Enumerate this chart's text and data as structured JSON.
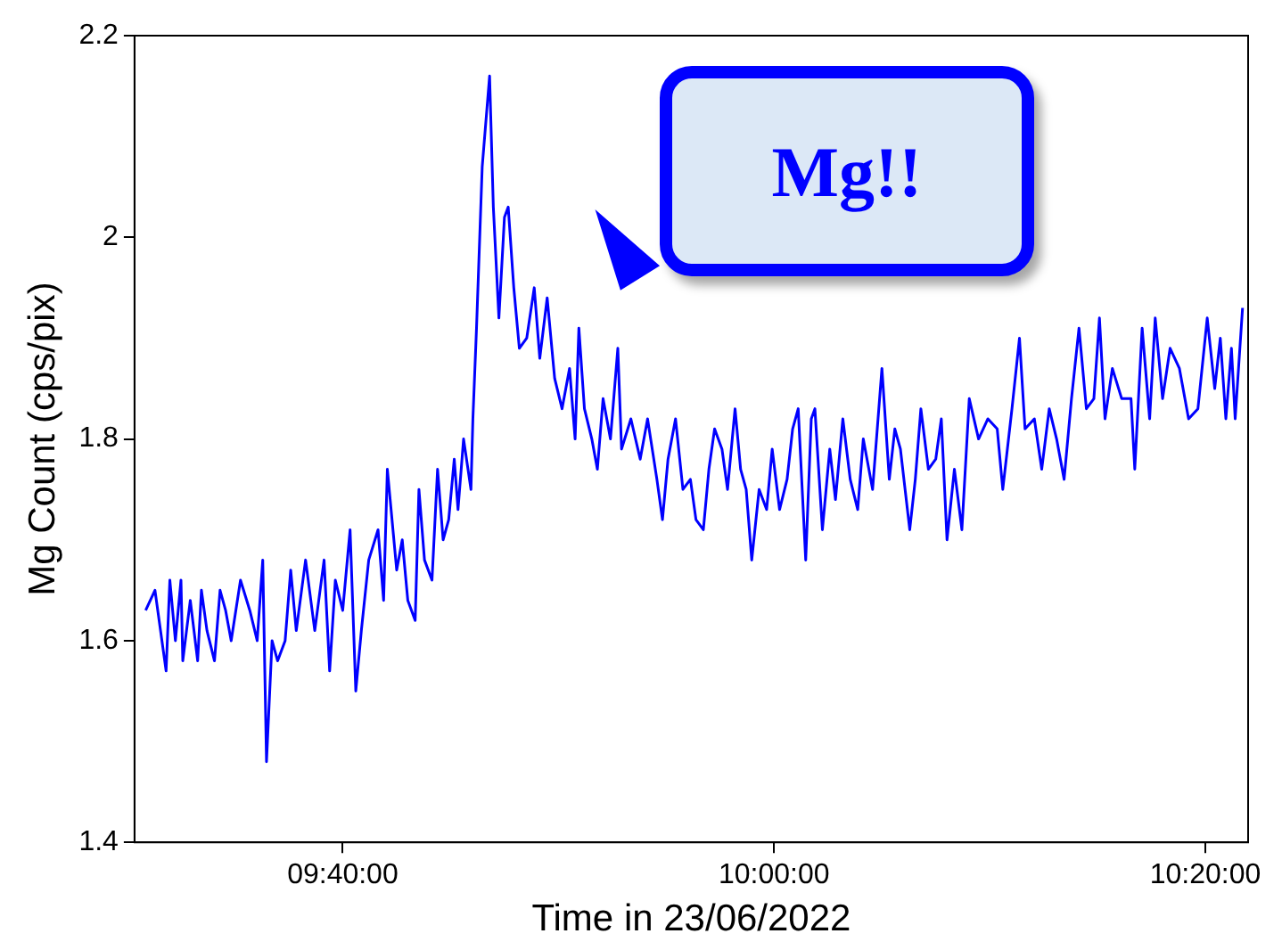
{
  "chart_data": {
    "type": "line",
    "xlabel": "Time in 23/06/2022",
    "ylabel": "Mg Count (cps/pix)",
    "annotations": [
      "Mg!!"
    ],
    "xlim": [
      9.5058,
      10.3664
    ],
    "xticks": [
      {
        "value": 9.6667,
        "label": "09:40:00"
      },
      {
        "value": 10,
        "label": "10:00:00"
      },
      {
        "value": 10.3333,
        "label": "10:20:00"
      }
    ],
    "ylim": [
      1.4,
      2.2
    ],
    "yticks": [
      1.4,
      1.6,
      1.8,
      2,
      2.2
    ],
    "grid": false,
    "legend": false,
    "marker": "none",
    "line_style": "solid",
    "series": [
      {
        "color": "#0000ff",
        "x": [
          9.5144,
          9.5216,
          9.5302,
          9.5331,
          9.5374,
          9.5417,
          9.5431,
          9.5489,
          9.5546,
          9.5575,
          9.5618,
          9.5676,
          9.5719,
          9.5762,
          9.5805,
          9.5877,
          9.5949,
          9.6006,
          9.6049,
          9.6078,
          9.6121,
          9.6164,
          9.6222,
          9.6265,
          9.6308,
          9.638,
          9.6451,
          9.6523,
          9.6566,
          9.661,
          9.6667,
          9.6724,
          9.6768,
          9.6811,
          9.6868,
          9.694,
          9.6983,
          9.7012,
          9.7084,
          9.7127,
          9.717,
          9.7227,
          9.7256,
          9.7299,
          9.7357,
          9.74,
          9.7443,
          9.7486,
          9.7529,
          9.7558,
          9.7601,
          9.7658,
          9.7673,
          9.7701,
          9.7745,
          9.7802,
          9.7831,
          9.7874,
          9.7917,
          9.7946,
          9.7989,
          9.8032,
          9.8089,
          9.8147,
          9.819,
          9.8247,
          9.8305,
          9.8362,
          9.842,
          9.8463,
          9.8492,
          9.8535,
          9.8592,
          9.8635,
          9.8679,
          9.8736,
          9.8793,
          9.8822,
          9.8894,
          9.8966,
          9.9023,
          9.9095,
          9.9138,
          9.9181,
          9.9239,
          9.9296,
          9.9354,
          9.9397,
          9.9454,
          9.9497,
          9.9541,
          9.9598,
          9.9641,
          9.9699,
          9.9742,
          9.9785,
          9.9828,
          9.9885,
          9.9943,
          9.9986,
          10.0043,
          10.0101,
          10.0144,
          10.0187,
          10.0245,
          10.0288,
          10.0316,
          10.0374,
          10.0431,
          10.0475,
          10.0532,
          10.0589,
          10.0647,
          10.069,
          10.0762,
          10.0834,
          10.0891,
          10.0934,
          10.0977,
          10.1049,
          10.1092,
          10.1135,
          10.1193,
          10.125,
          10.1293,
          10.1337,
          10.1394,
          10.1452,
          10.1509,
          10.1581,
          10.1653,
          10.1725,
          10.1768,
          10.1839,
          10.1897,
          10.194,
          10.2012,
          10.2069,
          10.2127,
          10.2184,
          10.2242,
          10.2299,
          10.2357,
          10.2414,
          10.2472,
          10.2515,
          10.2558,
          10.2615,
          10.2687,
          10.2759,
          10.2788,
          10.2845,
          10.2903,
          10.2946,
          10.3003,
          10.3061,
          10.3133,
          10.3204,
          10.3276,
          10.3348,
          10.3406,
          10.3449,
          10.3492,
          10.3535,
          10.3564,
          10.3621
        ],
        "values": [
          1.63,
          1.65,
          1.57,
          1.66,
          1.6,
          1.66,
          1.58,
          1.64,
          1.58,
          1.65,
          1.61,
          1.58,
          1.65,
          1.63,
          1.6,
          1.66,
          1.63,
          1.6,
          1.68,
          1.48,
          1.6,
          1.58,
          1.6,
          1.67,
          1.61,
          1.68,
          1.61,
          1.68,
          1.57,
          1.66,
          1.63,
          1.71,
          1.55,
          1.61,
          1.68,
          1.71,
          1.64,
          1.77,
          1.67,
          1.7,
          1.64,
          1.62,
          1.75,
          1.68,
          1.66,
          1.77,
          1.7,
          1.72,
          1.78,
          1.73,
          1.8,
          1.75,
          1.82,
          1.91,
          2.07,
          2.16,
          2.03,
          1.92,
          2.02,
          2.03,
          1.95,
          1.89,
          1.9,
          1.95,
          1.88,
          1.94,
          1.86,
          1.83,
          1.87,
          1.8,
          1.91,
          1.83,
          1.8,
          1.77,
          1.84,
          1.8,
          1.89,
          1.79,
          1.82,
          1.78,
          1.82,
          1.76,
          1.72,
          1.78,
          1.82,
          1.75,
          1.76,
          1.72,
          1.71,
          1.77,
          1.81,
          1.79,
          1.75,
          1.83,
          1.77,
          1.75,
          1.68,
          1.75,
          1.73,
          1.79,
          1.73,
          1.76,
          1.81,
          1.83,
          1.68,
          1.82,
          1.83,
          1.71,
          1.79,
          1.74,
          1.82,
          1.76,
          1.73,
          1.8,
          1.75,
          1.87,
          1.76,
          1.81,
          1.79,
          1.71,
          1.76,
          1.83,
          1.77,
          1.78,
          1.82,
          1.7,
          1.77,
          1.71,
          1.84,
          1.8,
          1.82,
          1.81,
          1.75,
          1.83,
          1.9,
          1.81,
          1.82,
          1.77,
          1.83,
          1.8,
          1.76,
          1.84,
          1.91,
          1.83,
          1.84,
          1.92,
          1.82,
          1.87,
          1.84,
          1.84,
          1.77,
          1.91,
          1.82,
          1.92,
          1.84,
          1.89,
          1.87,
          1.82,
          1.83,
          1.92,
          1.85,
          1.9,
          1.82,
          1.89,
          1.82,
          1.93
        ]
      }
    ]
  }
}
